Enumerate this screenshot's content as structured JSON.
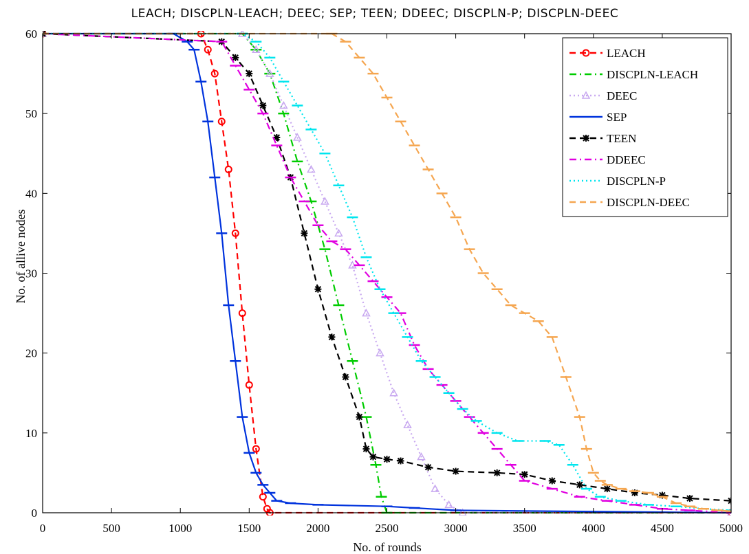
{
  "chart_data": {
    "type": "line",
    "title": "LEACH; DISCPLN-LEACH; DEEC; SEP; TEEN; DDEEC; DISCPLN-P; DISCPLN-DEEC",
    "xlabel": "No. of rounds",
    "ylabel": "No. of allive nodes",
    "xlim": [
      0,
      5000
    ],
    "ylim": [
      0,
      60
    ],
    "xticks": [
      0,
      500,
      1000,
      1500,
      2000,
      2500,
      3000,
      3500,
      4000,
      4500,
      5000
    ],
    "yticks": [
      0,
      10,
      20,
      30,
      40,
      50,
      60
    ],
    "grid": false,
    "legend_position": "top-right",
    "series": [
      {
        "name": "LEACH",
        "color": "#ff0000",
        "dash": "dashed",
        "marker": "circle",
        "x": [
          0,
          1150,
          1200,
          1250,
          1300,
          1350,
          1400,
          1450,
          1500,
          1550,
          1600,
          1630,
          1650,
          5000
        ],
        "y": [
          60,
          60,
          58,
          55,
          49,
          43,
          35,
          25,
          16,
          8,
          2,
          0.5,
          0,
          0
        ]
      },
      {
        "name": "DISCPLN-LEACH",
        "color": "#00cc00",
        "dash": "dashdot",
        "marker": "bar",
        "x": [
          0,
          1450,
          1550,
          1650,
          1750,
          1850,
          1950,
          2050,
          2150,
          2250,
          2350,
          2420,
          2460,
          2500,
          5000
        ],
        "y": [
          60,
          60,
          58,
          55,
          50,
          44,
          39,
          33,
          26,
          19,
          12,
          6,
          2,
          0,
          0
        ]
      },
      {
        "name": "DEEC",
        "color": "#c8a8f0",
        "dash": "dotted",
        "marker": "triangle",
        "x": [
          0,
          1450,
          1550,
          1650,
          1750,
          1850,
          1950,
          2050,
          2150,
          2250,
          2350,
          2450,
          2550,
          2650,
          2750,
          2850,
          2950,
          3050,
          5000
        ],
        "y": [
          60,
          60,
          58,
          55,
          51,
          47,
          43,
          39,
          35,
          31,
          25,
          20,
          15,
          11,
          7,
          3,
          1,
          0,
          0
        ]
      },
      {
        "name": "SEP",
        "color": "#0033dd",
        "dash": "solid",
        "marker": "bar",
        "x": [
          0,
          950,
          1050,
          1100,
          1150,
          1200,
          1250,
          1300,
          1350,
          1400,
          1450,
          1500,
          1550,
          1600,
          1650,
          1700,
          1800,
          2000,
          2500,
          2700,
          3000,
          5000
        ],
        "y": [
          60,
          60,
          59,
          58,
          54,
          49,
          42,
          35,
          26,
          19,
          12,
          7.5,
          5,
          3.5,
          2.5,
          1.5,
          1.2,
          1,
          0.8,
          0.6,
          0.3,
          0
        ]
      },
      {
        "name": "TEEN",
        "color": "#000000",
        "dash": "dashed",
        "marker": "star",
        "x": [
          0,
          1300,
          1400,
          1500,
          1600,
          1700,
          1800,
          1900,
          2000,
          2100,
          2200,
          2300,
          2350,
          2400,
          2500,
          2600,
          2800,
          3000,
          3300,
          3500,
          3700,
          3900,
          4100,
          4300,
          4500,
          4700,
          5000
        ],
        "y": [
          60,
          59,
          57,
          55,
          51,
          47,
          42,
          35,
          28,
          22,
          17,
          12,
          8,
          7,
          6.7,
          6.5,
          5.7,
          5.2,
          5,
          4.8,
          4,
          3.5,
          3,
          2.5,
          2.2,
          1.8,
          1.5
        ]
      },
      {
        "name": "DDEEC",
        "color": "#e000e0",
        "dash": "dashdot",
        "marker": "bar",
        "x": [
          0,
          1300,
          1400,
          1500,
          1600,
          1700,
          1800,
          1900,
          2000,
          2100,
          2200,
          2300,
          2400,
          2500,
          2600,
          2700,
          2800,
          2900,
          3000,
          3100,
          3200,
          3300,
          3400,
          3500,
          3700,
          3900,
          4100,
          4300,
          4500,
          4700,
          5000
        ],
        "y": [
          60,
          59,
          56,
          53,
          50,
          46,
          42,
          39,
          36,
          34,
          33,
          31,
          29,
          27,
          25,
          21,
          18,
          16,
          14,
          12,
          10,
          8,
          6,
          4,
          3,
          2,
          1.5,
          1,
          0.5,
          0.3,
          0
        ]
      },
      {
        "name": "DISCPLN-P",
        "color": "#00e5ee",
        "dash": "dotted",
        "marker": "bar",
        "x": [
          0,
          1450,
          1550,
          1650,
          1750,
          1850,
          1950,
          2050,
          2150,
          2250,
          2350,
          2450,
          2550,
          2650,
          2750,
          2850,
          2950,
          3050,
          3150,
          3300,
          3450,
          3650,
          3750,
          3850,
          3950,
          4050,
          4200,
          4400,
          4600,
          4800,
          5000
        ],
        "y": [
          60,
          60,
          59,
          57,
          54,
          51,
          48,
          45,
          41,
          37,
          32,
          28,
          25,
          22,
          19,
          17,
          15,
          13,
          11.5,
          10,
          9,
          9,
          8.5,
          6,
          3,
          2,
          1.5,
          1,
          0.8,
          0.5,
          0.3
        ]
      },
      {
        "name": "DISCPLN-DEEC",
        "color": "#f5a650",
        "dash": "dashed",
        "marker": "bar",
        "x": [
          0,
          2100,
          2200,
          2300,
          2400,
          2500,
          2600,
          2700,
          2800,
          2900,
          3000,
          3100,
          3200,
          3300,
          3400,
          3500,
          3600,
          3700,
          3800,
          3900,
          3950,
          4000,
          4050,
          4100,
          4200,
          4300,
          4400,
          4500,
          4600,
          4700,
          4800,
          4900,
          5000
        ],
        "y": [
          60,
          60,
          59,
          57,
          55,
          52,
          49,
          46,
          43,
          40,
          37,
          33,
          30,
          28,
          26,
          25,
          24,
          22,
          17,
          12,
          8,
          5,
          4,
          3.5,
          3,
          2.7,
          2.5,
          2,
          1.2,
          0.8,
          0.5,
          0.3,
          0.2
        ]
      }
    ]
  }
}
